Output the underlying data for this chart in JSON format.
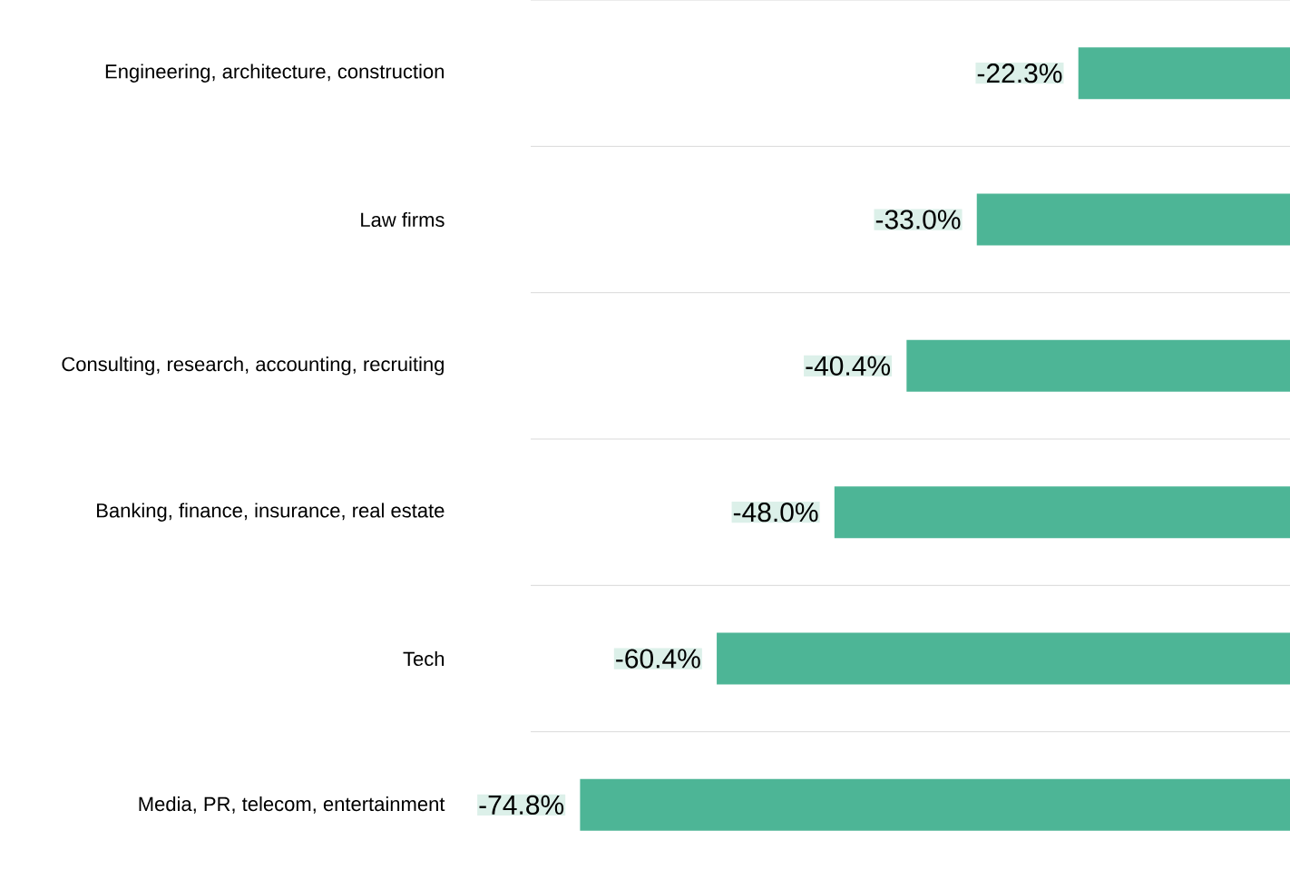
{
  "chart_data": {
    "type": "bar",
    "orientation": "horizontal",
    "categories": [
      "Engineering, architecture, construction",
      "Law firms",
      "Consulting, research, accounting, recruiting",
      "Banking, finance, insurance, real estate",
      "Tech",
      "Media, PR, telecom, entertainment"
    ],
    "values": [
      -22.3,
      -33.0,
      -40.4,
      -48.0,
      -60.4,
      -74.8
    ],
    "value_labels": [
      "-22.3%",
      "-33.0%",
      "-40.4%",
      "-48.0%",
      "-60.4%",
      "-74.8%"
    ],
    "color": "#4db596",
    "xlim": [
      -80,
      0
    ],
    "grid": "y"
  }
}
